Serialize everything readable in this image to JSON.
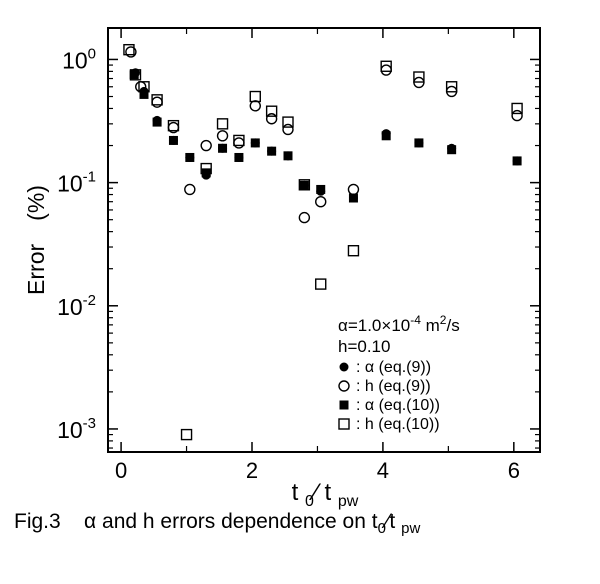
{
  "chart_data": {
    "type": "scatter",
    "xlabel_main": "t",
    "xlabel_sub0": "0",
    "xlabel_slash": "∕",
    "xlabel_main2": "t",
    "xlabel_sub1": "pw",
    "ylabel": "Error　(%)",
    "yscale": "log",
    "xlim": [
      -0.2,
      6.4
    ],
    "ylim": [
      0.00065,
      1.8
    ],
    "x_ticks": [
      0,
      2,
      4,
      6
    ],
    "x_tick_labels": [
      "0",
      "2",
      "4",
      "6"
    ],
    "y_ticks": [
      1,
      0.1,
      0.01,
      0.001
    ],
    "y_tick_labels": [
      {
        "base": "10",
        "exp": "0"
      },
      {
        "base": "10",
        "exp": "-1"
      },
      {
        "base": "10",
        "exp": "-2"
      },
      {
        "base": "10",
        "exp": "-3"
      }
    ],
    "annotations": {
      "alpha_line": "α=1.0×10",
      "alpha_exp": "-4",
      "alpha_unit": " m",
      "alpha_unit_exp": "2",
      "alpha_unit_end": "/s",
      "h_line": "h=0.10"
    },
    "legend_position": "bottom-right",
    "series": [
      {
        "name": "α (eq.(9))",
        "legend_label": ": α (eq.(9))",
        "marker": "filled-circle",
        "x": [
          0.22,
          0.35,
          0.55,
          0.8,
          1.05,
          1.3,
          1.55,
          1.8,
          2.05,
          2.3,
          2.55,
          2.8,
          3.05,
          3.55,
          4.05,
          4.55,
          5.05,
          6.05
        ],
        "y": [
          0.78,
          0.55,
          0.32,
          0.22,
          0.16,
          0.115,
          0.19,
          0.16,
          0.21,
          0.18,
          0.165,
          0.095,
          0.085,
          0.075,
          0.25,
          0.21,
          0.19,
          0.15
        ]
      },
      {
        "name": "h (eq.(9))",
        "legend_label": ": h (eq.(9))",
        "marker": "open-circle",
        "x": [
          0.15,
          0.3,
          0.55,
          0.8,
          1.05,
          1.3,
          1.55,
          1.8,
          2.05,
          2.3,
          2.55,
          2.8,
          3.05,
          3.55,
          4.05,
          4.55,
          5.05,
          6.05
        ],
        "y": [
          1.15,
          0.6,
          0.45,
          0.28,
          0.088,
          0.2,
          0.24,
          0.21,
          0.42,
          0.33,
          0.27,
          0.052,
          0.07,
          0.088,
          0.82,
          0.65,
          0.55,
          0.35
        ]
      },
      {
        "name": "α (eq.(10))",
        "legend_label": ": α (eq.(10))",
        "marker": "filled-square",
        "x": [
          0.2,
          0.35,
          0.55,
          0.8,
          1.05,
          1.3,
          1.55,
          1.8,
          2.05,
          2.3,
          2.55,
          2.8,
          3.05,
          3.55,
          4.05,
          4.55,
          5.05,
          6.05
        ],
        "y": [
          0.75,
          0.52,
          0.31,
          0.22,
          0.16,
          0.12,
          0.19,
          0.16,
          0.21,
          0.18,
          0.165,
          0.095,
          0.088,
          0.075,
          0.24,
          0.21,
          0.185,
          0.15
        ]
      },
      {
        "name": "h (eq.(10))",
        "legend_label": ": h (eq.(10))",
        "marker": "open-square",
        "x": [
          0.12,
          0.22,
          0.35,
          0.55,
          0.8,
          1.0,
          1.3,
          1.55,
          1.8,
          2.05,
          2.3,
          2.55,
          2.8,
          3.05,
          3.55,
          4.05,
          4.55,
          5.05,
          6.05
        ],
        "y": [
          1.2,
          0.75,
          0.6,
          0.47,
          0.29,
          0.0009,
          0.13,
          0.3,
          0.22,
          0.5,
          0.38,
          0.31,
          0.096,
          0.015,
          0.028,
          0.88,
          0.72,
          0.6,
          0.4
        ]
      }
    ]
  },
  "caption": {
    "prefix": "Fig.3",
    "text1": "α and h errors dependence on t",
    "sub0": "0",
    "slash": "∕",
    "text2": "t",
    "sub1": "pw"
  }
}
